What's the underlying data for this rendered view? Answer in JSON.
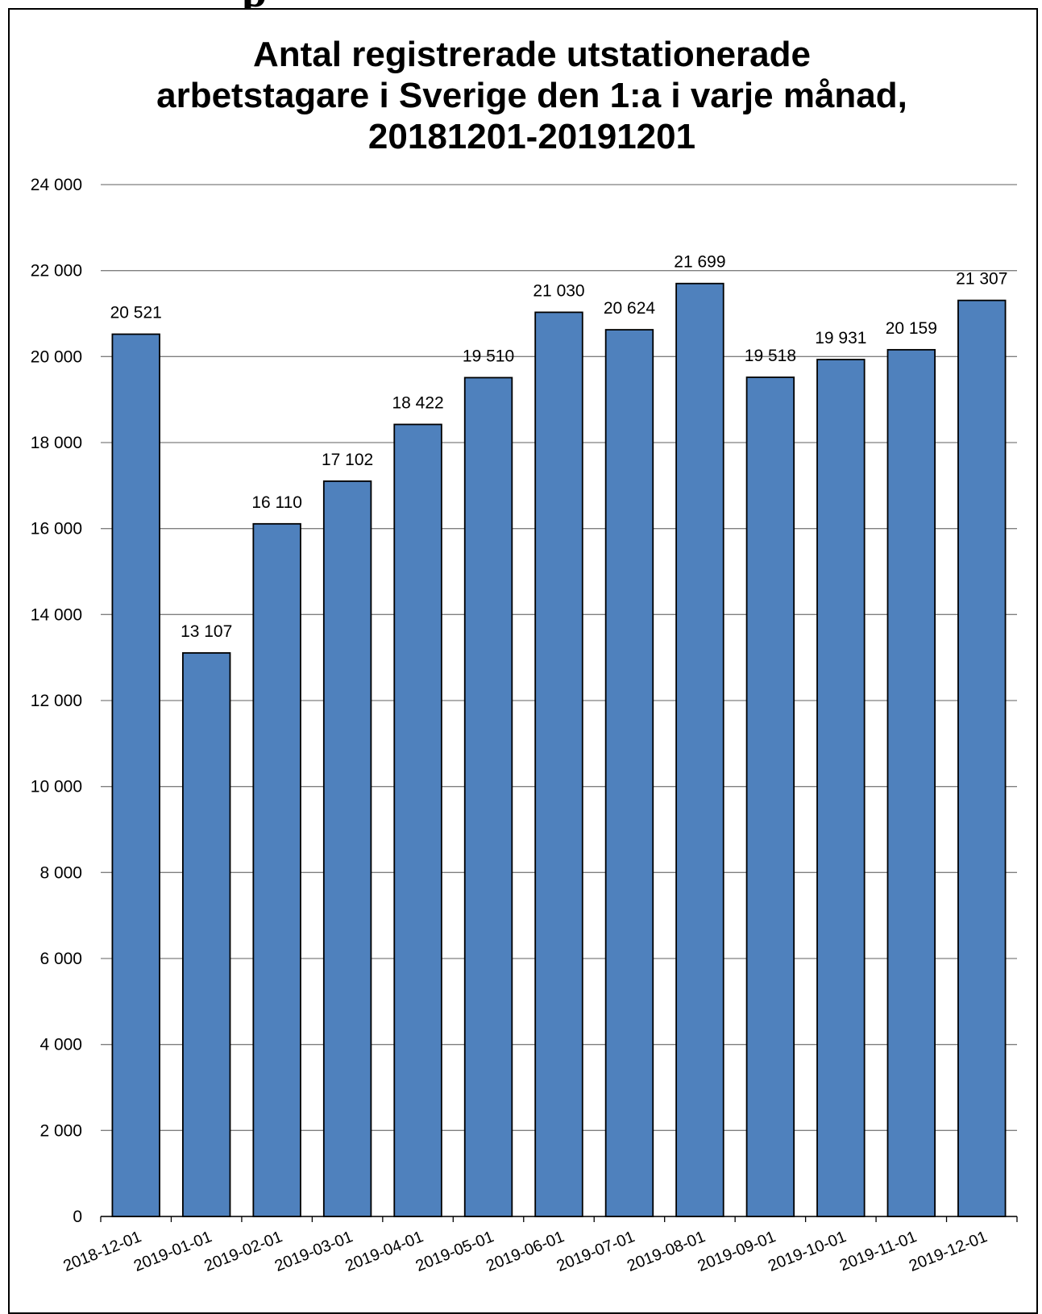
{
  "header_fragment": "p",
  "chart_data": {
    "type": "bar",
    "title_lines": [
      "Antal registrerade utstationerade",
      "arbetstagare i Sverige den 1:a i varje månad,",
      "20181201-20191201"
    ],
    "categories": [
      "2018-12-01",
      "2019-01-01",
      "2019-02-01",
      "2019-03-01",
      "2019-04-01",
      "2019-05-01",
      "2019-06-01",
      "2019-07-01",
      "2019-08-01",
      "2019-09-01",
      "2019-10-01",
      "2019-11-01",
      "2019-12-01"
    ],
    "values": [
      20521,
      13107,
      16110,
      17102,
      18422,
      19510,
      21030,
      20624,
      21699,
      19518,
      19931,
      20159,
      21307
    ],
    "value_labels": [
      "20 521",
      "13 107",
      "16 110",
      "17 102",
      "18 422",
      "19 510",
      "21 030",
      "20 624",
      "21 699",
      "19 518",
      "19 931",
      "20 159",
      "21 307"
    ],
    "y_ticks": [
      0,
      2000,
      4000,
      6000,
      8000,
      10000,
      12000,
      14000,
      16000,
      18000,
      20000,
      22000,
      24000
    ],
    "y_tick_labels": [
      "0",
      "2 000",
      "4 000",
      "6 000",
      "8 000",
      "10 000",
      "12 000",
      "14 000",
      "16 000",
      "18 000",
      "20 000",
      "22 000",
      "24 000"
    ],
    "ylim": [
      0,
      24000
    ],
    "grid": true,
    "legend": "none",
    "bar_color": "#4f81bd",
    "bar_border_color": "#000000",
    "xlabel": "",
    "ylabel": ""
  }
}
